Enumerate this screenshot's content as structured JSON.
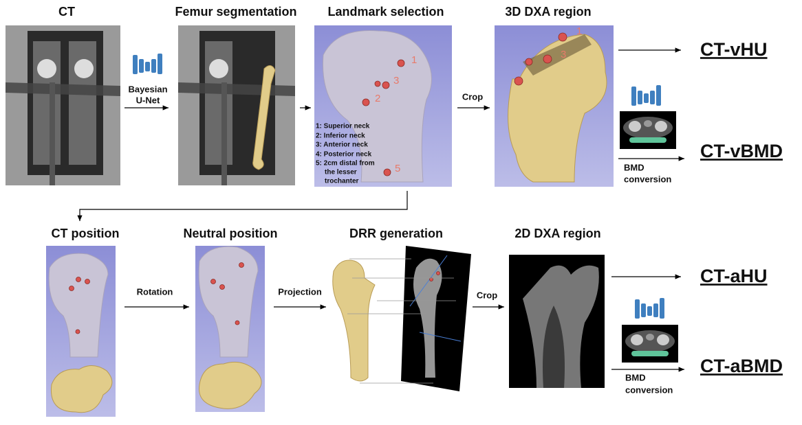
{
  "panels": [
    {
      "title": "CT"
    },
    {
      "title": "Femur segmentation"
    },
    {
      "title": "Landmark selection"
    },
    {
      "title": "3D DXA region"
    },
    {
      "title": "CT position"
    },
    {
      "title": "Neutral position"
    },
    {
      "title": "DRR generation"
    },
    {
      "title": "2D DXA region"
    }
  ],
  "landmark_legend": [
    "1: Superior neck",
    "2: Inferior neck",
    "3: Anterior neck",
    "4: Posterior neck",
    "5: 2cm distal from",
    "the lesser",
    "trochanter"
  ],
  "landmark_numbers": [
    "1",
    "2",
    "3",
    "5"
  ],
  "dxa_numbers": [
    "1",
    "3"
  ],
  "steps": {
    "segmentation": [
      "Bayesian",
      "U-Net"
    ],
    "crop_3d": "Crop",
    "rotation": "Rotation",
    "projection": "Projection",
    "crop_2d": "Crop",
    "bmd_3d": [
      "BMD",
      "conversion"
    ],
    "bmd_2d": [
      "BMD",
      "conversion"
    ]
  },
  "outputs": [
    "CT-vHU",
    "CT-vBMD",
    "CT-aHU",
    "CT-aBMD"
  ]
}
